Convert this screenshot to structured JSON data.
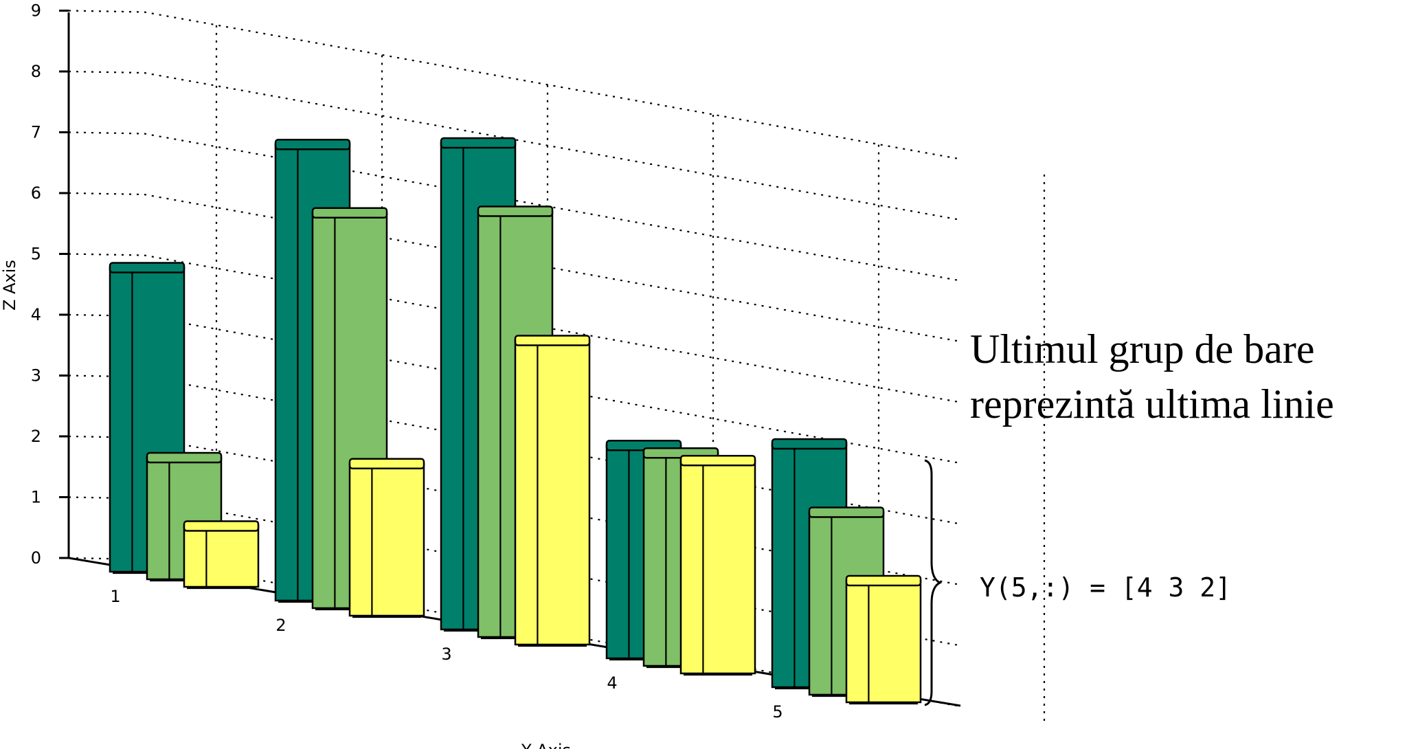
{
  "chart_data": {
    "type": "bar",
    "style": "3d-grouped",
    "categories": [
      "1",
      "2",
      "3",
      "4",
      "5"
    ],
    "series": [
      {
        "color": "#00806a",
        "values": [
          5,
          7.5,
          8,
          3.5,
          4
        ]
      },
      {
        "color": "#80c068",
        "values": [
          2,
          6.5,
          7,
          3.5,
          3
        ]
      },
      {
        "color": "#ffff66",
        "values": [
          1,
          2.5,
          5,
          3.5,
          2
        ]
      }
    ],
    "xlabel": "Y Axis",
    "ylabel": "Z Axis",
    "ylim": [
      0,
      9
    ],
    "yticks": [
      "0",
      "1",
      "2",
      "3",
      "4",
      "5",
      "6",
      "7",
      "8",
      "9"
    ],
    "grid": true,
    "annotations": {
      "note_line1": "Ultimul grup de bare",
      "note_line2": "reprezintă ultima linie",
      "formula": "Y(5,:) = [4 3 2]"
    }
  }
}
